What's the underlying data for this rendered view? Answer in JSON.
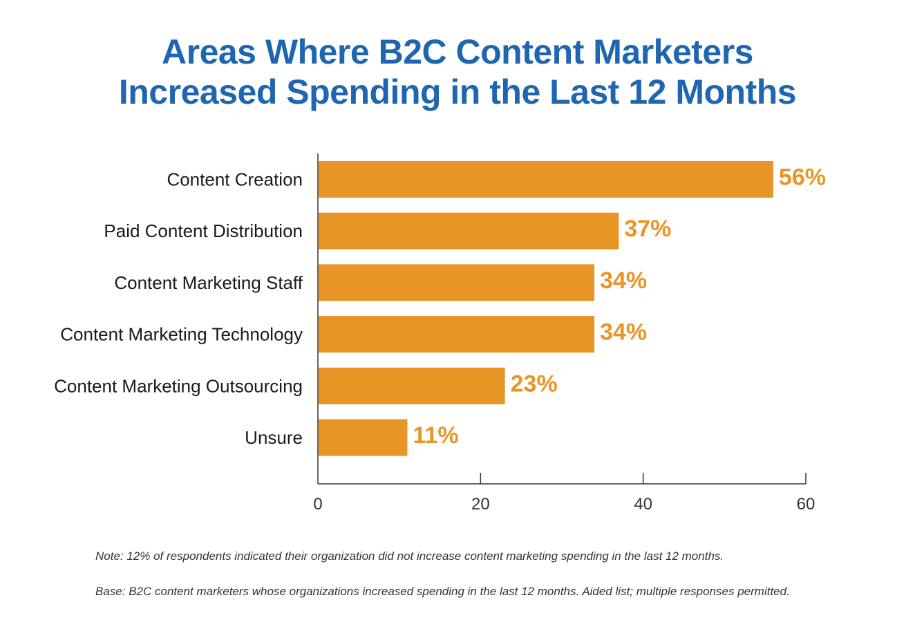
{
  "chart_data": {
    "type": "bar",
    "orientation": "horizontal",
    "title": "Areas Where B2C Content Marketers Increased Spending in the Last 12 Months",
    "title_lines": [
      "Areas Where B2C Content Marketers",
      "Increased Spending in the Last 12 Months"
    ],
    "categories": [
      "Content Creation",
      "Paid Content Distribution",
      "Content Marketing Staff",
      "Content Marketing Technology",
      "Content Marketing Outsourcing",
      "Unsure"
    ],
    "values": [
      56,
      37,
      34,
      34,
      23,
      11
    ],
    "data_labels": [
      "56%",
      "37%",
      "34%",
      "34%",
      "23%",
      "11%"
    ],
    "xlim": [
      0,
      60
    ],
    "xticks": [
      0,
      20,
      40,
      60
    ],
    "xlabel": "",
    "ylabel": "",
    "grid": false,
    "legend": "none",
    "colors": {
      "bar": "#e99526",
      "label": "#e99526",
      "title": "#1f66b0",
      "axis": "#333333",
      "text": "#1a1a1a"
    }
  },
  "notes": {
    "note": "Note: 12% of respondents indicated their organization did not increase content marketing spending in the last 12 months.",
    "base": "Base: B2C content marketers whose organizations increased spending in the last 12 months. Aided list; multiple responses permitted."
  }
}
